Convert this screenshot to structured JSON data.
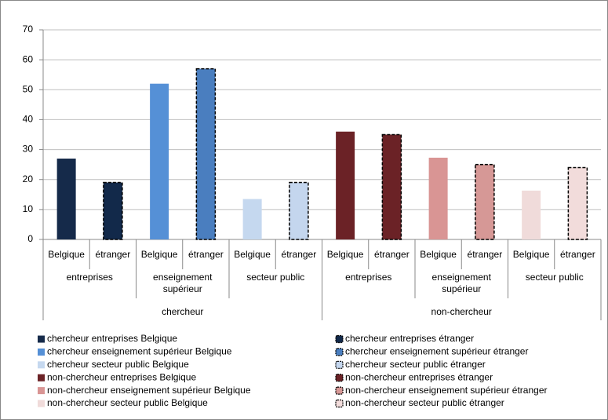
{
  "chart_data": {
    "type": "bar",
    "categories": [
      "Belgique",
      "étranger",
      "Belgique",
      "étranger",
      "Belgique",
      "étranger",
      "Belgique",
      "étranger",
      "Belgique",
      "étranger",
      "Belgique",
      "étranger"
    ],
    "groups": [
      "entreprises",
      "enseignement supérieur",
      "secteur public",
      "entreprises",
      "enseignement supérieur",
      "secteur public"
    ],
    "supergroups": [
      "chercheur",
      "non-chercheur"
    ],
    "series": [
      {
        "name": "chercheur entreprises Belgique",
        "color": "#152a4a",
        "dashed": false,
        "values": [
          27,
          null,
          null,
          null,
          null,
          null,
          null,
          null,
          null,
          null,
          null,
          null
        ]
      },
      {
        "name": "chercheur entreprises étranger",
        "color": "#12294a",
        "dashed": true,
        "values": [
          null,
          19,
          null,
          null,
          null,
          null,
          null,
          null,
          null,
          null,
          null,
          null
        ]
      },
      {
        "name": "chercheur enseignement supérieur Belgique",
        "color": "#5590d6",
        "dashed": false,
        "values": [
          null,
          null,
          52,
          null,
          null,
          null,
          null,
          null,
          null,
          null,
          null,
          null
        ]
      },
      {
        "name": "chercheur enseignement supérieur étranger",
        "color": "#4a7ebf",
        "dashed": true,
        "values": [
          null,
          null,
          null,
          57,
          null,
          null,
          null,
          null,
          null,
          null,
          null,
          null
        ]
      },
      {
        "name": "chercheur secteur public Belgique",
        "color": "#c5d8ef",
        "dashed": false,
        "values": [
          null,
          null,
          null,
          null,
          13.5,
          null,
          null,
          null,
          null,
          null,
          null,
          null
        ]
      },
      {
        "name": "chercheur secteur public étranger",
        "color": "#c4d6ee",
        "dashed": true,
        "values": [
          null,
          null,
          null,
          null,
          null,
          19,
          null,
          null,
          null,
          null,
          null,
          null
        ]
      },
      {
        "name": "non-chercheur entreprises Belgique",
        "color": "#6b2226",
        "dashed": false,
        "values": [
          null,
          null,
          null,
          null,
          null,
          null,
          36,
          null,
          null,
          null,
          null,
          null
        ]
      },
      {
        "name": "non-chercheur entreprises étranger",
        "color": "#6b2226",
        "dashed": true,
        "values": [
          null,
          null,
          null,
          null,
          null,
          null,
          null,
          35,
          null,
          null,
          null,
          null
        ]
      },
      {
        "name": "non-chercheur enseignement supérieur Belgique",
        "color": "#d99594",
        "dashed": false,
        "values": [
          null,
          null,
          null,
          null,
          null,
          null,
          null,
          null,
          27.3,
          null,
          null,
          null
        ]
      },
      {
        "name": "non-chercheur enseignement supérieur étranger",
        "color": "#d69896",
        "dashed": true,
        "values": [
          null,
          null,
          null,
          null,
          null,
          null,
          null,
          null,
          null,
          25,
          null,
          null
        ]
      },
      {
        "name": "non-chercheur secteur public Belgique",
        "color": "#f0dbda",
        "dashed": false,
        "values": [
          null,
          null,
          null,
          null,
          null,
          null,
          null,
          null,
          null,
          null,
          16.3,
          null
        ]
      },
      {
        "name": "non-chercheur secteur public étranger",
        "color": "#f2dcdb",
        "dashed": true,
        "values": [
          null,
          null,
          null,
          null,
          null,
          null,
          null,
          null,
          null,
          null,
          null,
          24
        ]
      }
    ],
    "ylim": [
      0,
      70
    ],
    "yticks": [
      0,
      10,
      20,
      30,
      40,
      50,
      60,
      70
    ],
    "grid": true
  }
}
